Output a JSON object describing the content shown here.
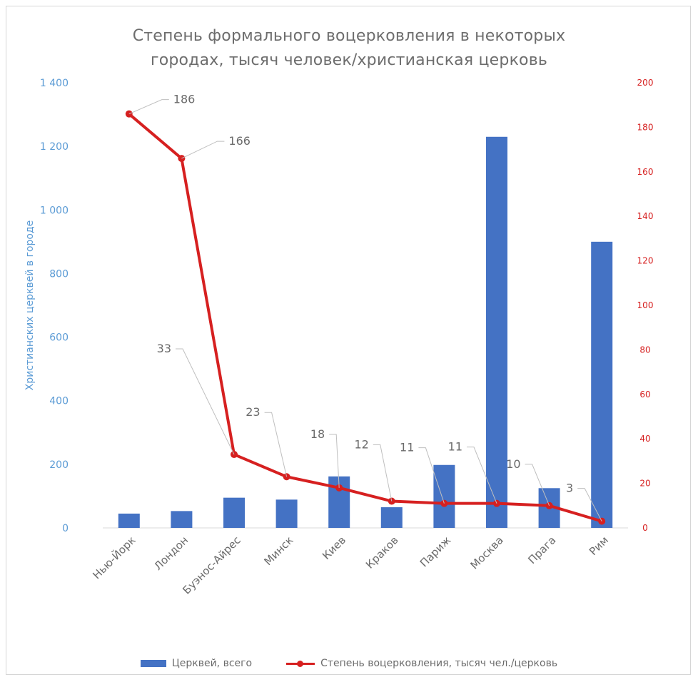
{
  "title_lines": [
    "Степень формального воцерковления  в некоторых",
    "городах, тысяч человек/христианская  церковь"
  ],
  "chart_data": {
    "type": "bar",
    "title": "Степень формального воцерковления  в некоторых городах, тысяч человек/христианская  церковь",
    "categories": [
      "Нью-Йорк",
      "Лондон",
      "Буэнос-Айрес",
      "Минск",
      "Киев",
      "Краков",
      "Париж",
      "Москва",
      "Прага",
      "Рим"
    ],
    "series": [
      {
        "name": "Церквей, всего",
        "type": "bar",
        "axis": "left",
        "color": "#4472c4",
        "values": [
          45,
          53,
          95,
          89,
          162,
          65,
          198,
          1230,
          125,
          900
        ]
      },
      {
        "name": "Степень воцерковления, тысяч чел./церковь",
        "type": "line",
        "axis": "right",
        "color": "#d62020",
        "values": [
          186,
          166,
          33,
          23,
          18,
          12,
          11,
          11,
          10,
          3
        ],
        "labels": [
          "186",
          "166",
          "33",
          "23",
          "18",
          "12",
          "11",
          "11",
          "10",
          "3"
        ]
      }
    ],
    "ylabel": "Христианских церквей в городе",
    "ylim": [
      0,
      1400
    ],
    "yticks": [
      0,
      200,
      400,
      600,
      800,
      1000,
      1200,
      1400
    ],
    "ytick_labels": [
      "0",
      "200",
      "400",
      "600",
      "800",
      "1 000",
      "1 200",
      "1 400"
    ],
    "y2lim": [
      0,
      200
    ],
    "y2ticks": [
      0,
      20,
      40,
      60,
      80,
      100,
      120,
      140,
      160,
      180,
      200
    ],
    "y2tick_labels": [
      "0",
      "20",
      "40",
      "60",
      "80",
      "100",
      "120",
      "140",
      "160",
      "180",
      "200"
    ],
    "legend_position": "bottom",
    "grid": false,
    "colors": {
      "bar": "#4472c4",
      "line": "#d62020",
      "left_axis_text": "#5b9bd5",
      "right_axis_text": "#d62020",
      "label_text": "#6b6b6b"
    }
  }
}
